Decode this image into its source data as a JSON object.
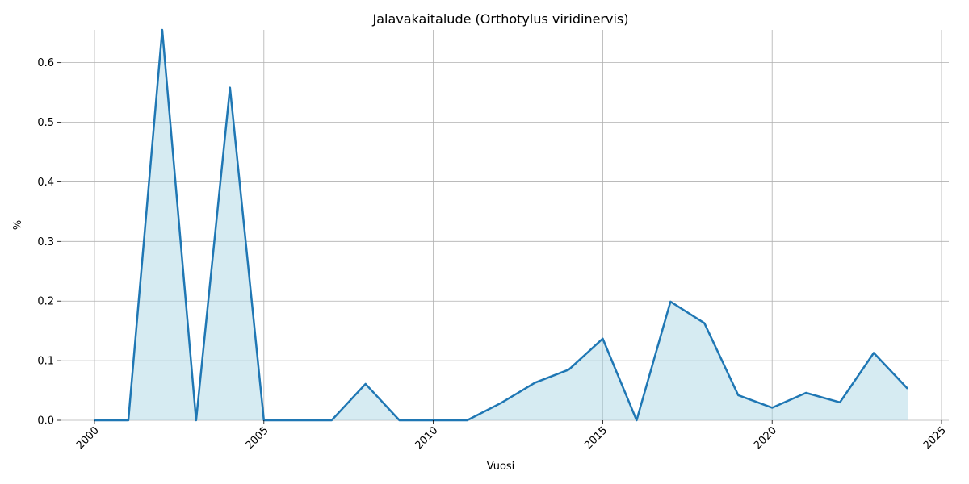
{
  "chart_data": {
    "type": "area",
    "title": "Jalavakaitalude (Orthotylus viridinervis)",
    "xlabel": "Vuosi",
    "ylabel": "%",
    "x": [
      2000,
      2001,
      2002,
      2003,
      2004,
      2005,
      2006,
      2007,
      2008,
      2009,
      2010,
      2011,
      2012,
      2013,
      2014,
      2015,
      2016,
      2017,
      2018,
      2019,
      2020,
      2021,
      2022,
      2023,
      2024
    ],
    "values": [
      0.0,
      0.0,
      0.655,
      0.0,
      0.558,
      0.0,
      0.0,
      0.0,
      0.061,
      0.0,
      0.0,
      0.0,
      0.029,
      0.063,
      0.085,
      0.137,
      0.0,
      0.199,
      0.163,
      0.042,
      0.021,
      0.046,
      0.03,
      0.113,
      0.053
    ],
    "xlim": [
      2000,
      2025
    ],
    "ylim": [
      0,
      0.655
    ],
    "xticks": [
      "2000",
      "2005",
      "2010",
      "2015",
      "2020",
      "2025"
    ],
    "yticks": [
      "0.0",
      "0.1",
      "0.2",
      "0.3",
      "0.4",
      "0.5",
      "0.6"
    ],
    "grid": true,
    "colors": {
      "line": "#1f77b4",
      "fill": "#add8e6",
      "grid": "#b0b0b0"
    }
  }
}
